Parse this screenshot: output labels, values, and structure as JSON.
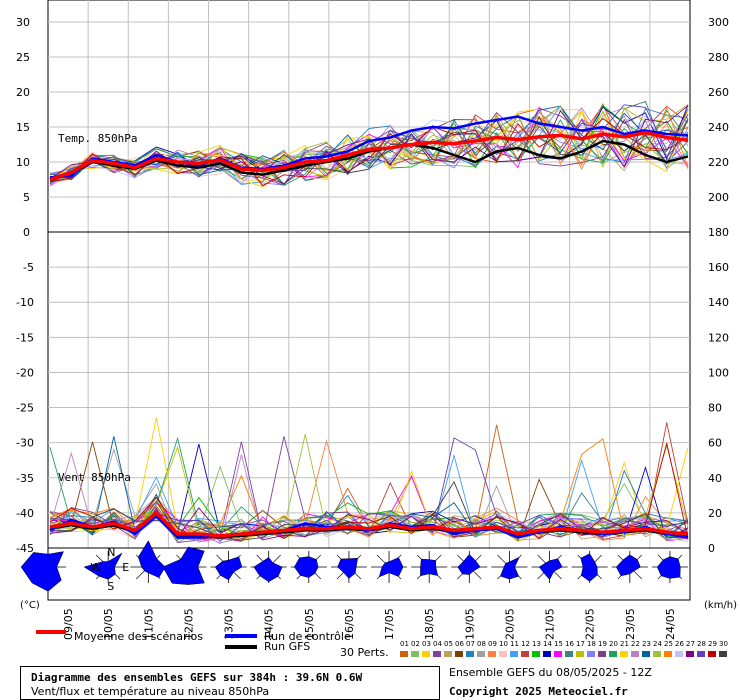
{
  "chart_data": [
    {
      "type": "line",
      "panel": "temperature",
      "title": "Temp. 850hPa",
      "left_axis_ticks": [
        30,
        25,
        20,
        15,
        10,
        5,
        0
      ],
      "right_axis_ticks": [
        300,
        280,
        260,
        240,
        220,
        200
      ],
      "ylim": [
        0,
        30
      ],
      "x_dates": [
        "09/05",
        "10/05",
        "11/05",
        "12/05",
        "13/05",
        "14/05",
        "15/05",
        "16/05",
        "17/05",
        "18/05",
        "19/05",
        "20/05",
        "21/05",
        "22/05",
        "23/05",
        "24/05"
      ],
      "mean_series": [
        7.5,
        8.5,
        10.2,
        9.8,
        9.2,
        10.5,
        10.0,
        9.8,
        10.3,
        9.0,
        8.8,
        9.2,
        10.0,
        10.2,
        11.0,
        11.8,
        12.0,
        12.5,
        12.8,
        12.6,
        13.0,
        13.5,
        13.2,
        13.6,
        13.8,
        13.3,
        14.0,
        13.6,
        14.2,
        13.5,
        13.1
      ],
      "control_series": [
        7.8,
        8.0,
        10.5,
        10.0,
        9.5,
        11.0,
        10.0,
        9.5,
        10.5,
        9.2,
        9.0,
        9.5,
        10.5,
        10.8,
        11.5,
        13.0,
        13.5,
        14.5,
        15.0,
        14.8,
        15.5,
        16.0,
        16.5,
        15.5,
        15.0,
        14.5,
        15.0,
        14.0,
        14.5,
        14.0,
        13.8
      ],
      "gfs_series": [
        7.6,
        8.2,
        10.0,
        9.5,
        9.0,
        10.2,
        9.5,
        9.2,
        9.8,
        8.5,
        8.2,
        8.8,
        9.5,
        10.0,
        10.5,
        11.5,
        12.0,
        12.5,
        12.0,
        11.0,
        10.0,
        11.5,
        12.0,
        11.0,
        10.5,
        11.5,
        13.0,
        12.5,
        11.0,
        10.0,
        10.8
      ]
    },
    {
      "type": "line",
      "panel": "wind",
      "title": "Vent 850hPa",
      "left_axis_ticks": [
        -5,
        -10,
        -15,
        -20,
        -25,
        -30,
        -35,
        -40,
        -45
      ],
      "right_axis_ticks": [
        180,
        160,
        140,
        120,
        100,
        80,
        60,
        40,
        20,
        0
      ],
      "ylim_kmh": [
        0,
        180
      ],
      "mean_series": [
        12,
        14,
        12,
        14,
        10,
        20,
        8,
        8,
        7,
        8,
        9,
        10,
        11,
        11,
        12,
        11,
        13,
        11,
        12,
        10,
        11,
        12,
        8,
        10,
        11,
        10,
        9,
        10,
        11,
        9,
        8
      ],
      "control_series": [
        10,
        16,
        12,
        15,
        8,
        18,
        6,
        6,
        7,
        8,
        9,
        10,
        14,
        12,
        12,
        10,
        14,
        12,
        13,
        8,
        10,
        11,
        6,
        9,
        12,
        10,
        8,
        9,
        12,
        8,
        6
      ],
      "gfs_series": [
        11,
        13,
        11,
        13,
        9,
        19,
        7,
        7,
        6,
        7,
        8,
        9,
        10,
        10,
        11,
        10,
        12,
        10,
        11,
        9,
        10,
        11,
        7,
        9,
        10,
        9,
        8,
        9,
        10,
        8,
        7
      ]
    }
  ],
  "axis": {
    "left_unit": "(°C)",
    "right_unit": "(km/h)",
    "x_dates": [
      "09/05",
      "10/05",
      "11/05",
      "12/05",
      "13/05",
      "14/05",
      "15/05",
      "16/05",
      "17/05",
      "18/05",
      "19/05",
      "20/05",
      "21/05",
      "22/05",
      "23/05",
      "24/05"
    ]
  },
  "rose": {
    "n": "N",
    "s": "S",
    "e": "E",
    "w": "W"
  },
  "legend": {
    "mean": "Moyenne des scénarios",
    "control": "Run de contrôle",
    "gfs": "Run GFS",
    "perts": "30 Perts.",
    "mean_color": "#ff0000",
    "control_color": "#0000ff",
    "gfs_color": "#000000",
    "pert_numbers": [
      "01",
      "02",
      "03",
      "04",
      "05",
      "06",
      "07",
      "08",
      "09",
      "10",
      "11",
      "12",
      "13",
      "14",
      "15",
      "16",
      "17",
      "18",
      "19",
      "20",
      "21",
      "22",
      "23",
      "24",
      "25",
      "26",
      "27",
      "28",
      "29",
      "30"
    ],
    "pert_colors": [
      "#d06010",
      "#80c060",
      "#ffcc00",
      "#8040a0",
      "#c0a060",
      "#804000",
      "#2080c0",
      "#a0a0a0",
      "#ff8040",
      "#ffc0c0",
      "#40a0ff",
      "#c04040",
      "#00c000",
      "#0000c0",
      "#ff00ff",
      "#408080",
      "#c0c000",
      "#8080ff",
      "#804080",
      "#20a060",
      "#ffd000",
      "#c080c0",
      "#0060a0",
      "#a0c040",
      "#ff8000",
      "#c0c0ff",
      "#800080",
      "#6040c0",
      "#c00000",
      "#404040"
    ]
  },
  "info": {
    "title": "Diagramme des ensembles GEFS sur 384h : 39.6N 0.6W",
    "subtitle": "Vent/flux et température au niveau 850hPa",
    "run": "Ensemble GEFS du 08/05/2025 - 12Z",
    "copyright": "Copyright 2025 Meteociel.fr"
  },
  "colors": {
    "grid": "#c0c0c0",
    "plot_bg": "#ffffff",
    "rose_fill": "#0000ff"
  }
}
